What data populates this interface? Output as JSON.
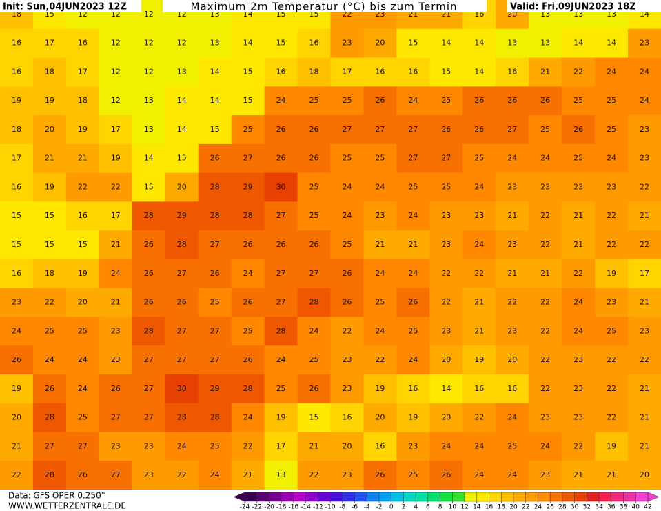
{
  "header": {
    "init": "Init: Sun,04JUN2023 12Z",
    "title": "Maximum 2m Temperatur (°C) bis zum Termin",
    "valid": "Valid: Fri,09JUN2023 18Z"
  },
  "footer": {
    "data": "Data: GFS OPER 0.250°",
    "site": "WWW.WETTERZENTRALE.DE"
  },
  "colorbar": {
    "ticks": [
      -24,
      -22,
      -20,
      -18,
      -16,
      -14,
      -12,
      -10,
      -8,
      -6,
      -4,
      -2,
      0,
      2,
      4,
      6,
      8,
      10,
      12,
      14,
      16,
      18,
      20,
      22,
      24,
      26,
      28,
      30,
      32,
      34,
      36,
      38,
      40,
      42
    ],
    "colors": [
      "#3b0050",
      "#5a0070",
      "#7a008f",
      "#9a00b0",
      "#b800cc",
      "#9000d0",
      "#6a00d8",
      "#4a10e0",
      "#3030e8",
      "#2050f0",
      "#1080f0",
      "#00a0f0",
      "#00c0e0",
      "#00d8c0",
      "#00e0a0",
      "#00e070",
      "#10e040",
      "#30e030",
      "#f0f000",
      "#ffe800",
      "#ffd400",
      "#ffc000",
      "#ffaa00",
      "#ff9a00",
      "#ff8800",
      "#f87000",
      "#f05800",
      "#e84000",
      "#e02020",
      "#f0204a",
      "#f02878",
      "#f030a0",
      "#f040d0"
    ]
  },
  "grid": [
    [
      18,
      15,
      12,
      12,
      12,
      12,
      13,
      14,
      15,
      15,
      22,
      23,
      21,
      21,
      16,
      20,
      13,
      13,
      13,
      14
    ],
    [
      16,
      17,
      16,
      12,
      12,
      12,
      13,
      14,
      15,
      16,
      23,
      20,
      15,
      14,
      14,
      13,
      13,
      14,
      14,
      23
    ],
    [
      16,
      18,
      17,
      12,
      12,
      13,
      14,
      15,
      16,
      18,
      17,
      16,
      16,
      15,
      14,
      16,
      21,
      22,
      24,
      24
    ],
    [
      19,
      19,
      18,
      12,
      13,
      14,
      14,
      15,
      24,
      25,
      25,
      26,
      24,
      25,
      26,
      26,
      26,
      25,
      25,
      24
    ],
    [
      18,
      20,
      19,
      17,
      13,
      14,
      15,
      25,
      26,
      26,
      27,
      27,
      27,
      26,
      26,
      27,
      25,
      26,
      25,
      23
    ],
    [
      17,
      21,
      21,
      19,
      14,
      15,
      26,
      27,
      26,
      26,
      25,
      25,
      27,
      27,
      25,
      24,
      24,
      25,
      24,
      23
    ],
    [
      16,
      19,
      22,
      22,
      15,
      20,
      28,
      29,
      30,
      25,
      24,
      24,
      25,
      25,
      24,
      23,
      23,
      23,
      23,
      22
    ],
    [
      15,
      15,
      16,
      17,
      28,
      29,
      28,
      28,
      27,
      25,
      24,
      23,
      24,
      23,
      23,
      21,
      22,
      21,
      22,
      21
    ],
    [
      15,
      15,
      15,
      21,
      26,
      28,
      27,
      26,
      26,
      26,
      25,
      21,
      21,
      23,
      24,
      23,
      22,
      21,
      22,
      22
    ],
    [
      16,
      18,
      19,
      24,
      26,
      27,
      26,
      24,
      27,
      27,
      26,
      24,
      24,
      22,
      22,
      21,
      21,
      22,
      19,
      17
    ],
    [
      23,
      22,
      20,
      21,
      26,
      26,
      25,
      26,
      27,
      28,
      26,
      25,
      26,
      22,
      21,
      22,
      22,
      24,
      23,
      21
    ],
    [
      24,
      25,
      25,
      23,
      28,
      27,
      27,
      25,
      28,
      24,
      22,
      24,
      25,
      23,
      21,
      23,
      22,
      24,
      25,
      23
    ],
    [
      26,
      24,
      24,
      23,
      27,
      27,
      27,
      26,
      24,
      25,
      23,
      22,
      24,
      20,
      19,
      20,
      22,
      23,
      22,
      22
    ],
    [
      19,
      26,
      24,
      26,
      27,
      30,
      29,
      28,
      25,
      26,
      23,
      19,
      16,
      14,
      16,
      16,
      22,
      23,
      22,
      21
    ],
    [
      20,
      28,
      25,
      27,
      27,
      28,
      28,
      24,
      19,
      15,
      16,
      20,
      19,
      20,
      22,
      24,
      23,
      23,
      22,
      21
    ],
    [
      21,
      27,
      27,
      23,
      23,
      24,
      25,
      22,
      17,
      21,
      20,
      16,
      23,
      24,
      24,
      25,
      24,
      22,
      19,
      21
    ],
    [
      22,
      28,
      26,
      27,
      23,
      22,
      24,
      21,
      13,
      22,
      23,
      26,
      25,
      26,
      24,
      24,
      23,
      21,
      21,
      20
    ]
  ]
}
